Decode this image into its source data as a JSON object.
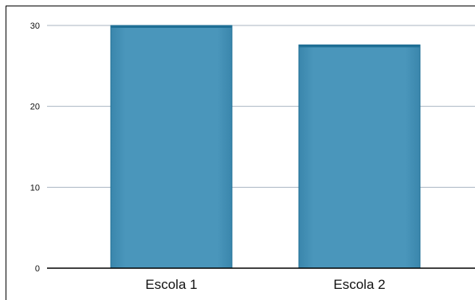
{
  "chart_data": {
    "type": "bar",
    "categories": [
      "Escola 1",
      "Escola 2"
    ],
    "values": [
      30,
      27.6
    ],
    "yticks": [
      0,
      10,
      20,
      30
    ],
    "ylim": [
      0,
      30
    ],
    "grid": true,
    "title": "",
    "xlabel": "",
    "ylabel": "",
    "colors": {
      "bar": "#4a96bb",
      "bar_edge": "#1f6f95",
      "grid": "#a9b6c2",
      "axis": "#000000"
    }
  }
}
